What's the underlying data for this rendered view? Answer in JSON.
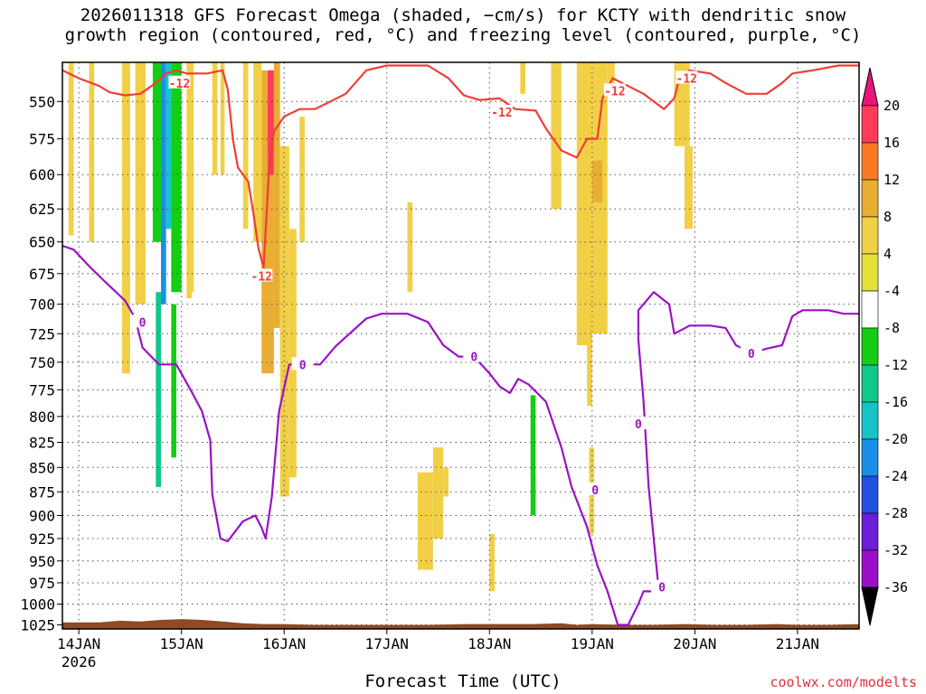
{
  "title_line1": "2026011318 GFS Forecast Omega (shaded, −cm/s) for KCTY with dendritic snow",
  "title_line2": "growth region (contoured, red, °C) and freezing level (contoured, purple, °C)",
  "credit": "coolwx.com/modelts",
  "chart_data": {
    "type": "heatmap",
    "xlabel": "Forecast Time (UTC)",
    "ylabel": "",
    "x_ticks": [
      "14JAN",
      "15JAN",
      "16JAN",
      "17JAN",
      "18JAN",
      "19JAN",
      "20JAN",
      "21JAN"
    ],
    "x_tick_sublabel": "2026",
    "x_range_days": [
      13.84,
      21.6
    ],
    "y_ticks": [
      550,
      575,
      600,
      625,
      650,
      675,
      700,
      725,
      750,
      775,
      800,
      825,
      850,
      875,
      900,
      925,
      950,
      975,
      1000,
      1025
    ],
    "y_range_hpa": [
      525,
      1030
    ],
    "y_log_scale": true,
    "grid": true,
    "colorbar": {
      "ticks": [
        "20",
        "16",
        "12",
        "8",
        "4",
        "-4",
        "-8",
        "-12",
        "-16",
        "-20",
        "-24",
        "-28",
        "-32",
        "-36"
      ],
      "colors": [
        "#ff3b5b",
        "#f97a22",
        "#e9ad34",
        "#f2d046",
        "#e4e23a",
        "#ffffff",
        "#14cd14",
        "#11c88c",
        "#18c3c8",
        "#1a8fe8",
        "#2350e0",
        "#6b1dd9",
        "#9a10c8",
        "#a8a8a8"
      ],
      "top_color": "#e8157a",
      "bottom_color": "#000000"
    },
    "contour_colors": {
      "dgz": "#ef3e36",
      "freezing": "#9b12c6",
      "terrain": "#8d4a24"
    },
    "contour_labels": {
      "dgz": "-12",
      "freezing": "0"
    },
    "freezing_level": [
      [
        13.84,
        653
      ],
      [
        13.95,
        656
      ],
      [
        14.1,
        669
      ],
      [
        14.25,
        681
      ],
      [
        14.45,
        697
      ],
      [
        14.55,
        712
      ],
      [
        14.62,
        737
      ],
      [
        14.78,
        752
      ],
      [
        14.95,
        752
      ],
      [
        15.1,
        777
      ],
      [
        15.2,
        795
      ],
      [
        15.28,
        823
      ],
      [
        15.3,
        878
      ],
      [
        15.38,
        925
      ],
      [
        15.45,
        928
      ],
      [
        15.6,
        906
      ],
      [
        15.72,
        900
      ],
      [
        15.78,
        913
      ],
      [
        15.82,
        925
      ],
      [
        15.88,
        880
      ],
      [
        15.95,
        795
      ],
      [
        16.05,
        752
      ],
      [
        16.2,
        752
      ],
      [
        16.35,
        752
      ],
      [
        16.5,
        736
      ],
      [
        16.8,
        712
      ],
      [
        16.95,
        708
      ],
      [
        17.2,
        708
      ],
      [
        17.4,
        715
      ],
      [
        17.55,
        735
      ],
      [
        17.7,
        745
      ],
      [
        17.85,
        745
      ],
      [
        18.0,
        760
      ],
      [
        18.1,
        772
      ],
      [
        18.2,
        778
      ],
      [
        18.28,
        765
      ],
      [
        18.38,
        770
      ],
      [
        18.55,
        786
      ],
      [
        18.7,
        830
      ],
      [
        18.8,
        870
      ],
      [
        18.95,
        912
      ],
      [
        19.05,
        955
      ],
      [
        19.15,
        985
      ],
      [
        19.25,
        1025
      ],
      [
        19.35,
        1025
      ],
      [
        19.45,
        1000
      ],
      [
        19.5,
        985
      ],
      [
        19.6,
        985
      ],
      [
        19.65,
        985
      ],
      [
        19.55,
        870
      ],
      [
        19.5,
        785
      ],
      [
        19.45,
        730
      ],
      [
        19.45,
        705
      ],
      [
        19.6,
        690
      ],
      [
        19.75,
        700
      ],
      [
        19.8,
        725
      ],
      [
        19.95,
        718
      ],
      [
        20.15,
        718
      ],
      [
        20.3,
        720
      ],
      [
        20.4,
        735
      ],
      [
        20.55,
        742
      ],
      [
        20.7,
        738
      ],
      [
        20.85,
        735
      ],
      [
        20.95,
        710
      ],
      [
        21.05,
        705
      ],
      [
        21.3,
        705
      ],
      [
        21.45,
        708
      ],
      [
        21.6,
        708
      ]
    ],
    "dgz_minus12": [
      [
        13.84,
        530
      ],
      [
        14.0,
        535
      ],
      [
        14.2,
        540
      ],
      [
        14.3,
        544
      ],
      [
        14.45,
        546
      ],
      [
        14.6,
        545
      ],
      [
        14.75,
        538
      ],
      [
        14.85,
        532
      ],
      [
        14.95,
        530
      ],
      [
        15.05,
        532
      ],
      [
        15.25,
        532
      ],
      [
        15.4,
        530
      ],
      [
        15.45,
        542
      ],
      [
        15.5,
        575
      ],
      [
        15.55,
        595
      ],
      [
        15.65,
        605
      ],
      [
        15.7,
        628
      ],
      [
        15.75,
        655
      ],
      [
        15.8,
        670
      ],
      [
        15.85,
        600
      ],
      [
        15.9,
        570
      ],
      [
        16.0,
        560
      ],
      [
        16.15,
        555
      ],
      [
        16.3,
        555
      ],
      [
        16.45,
        550
      ],
      [
        16.6,
        545
      ],
      [
        16.8,
        530
      ],
      [
        17.0,
        527
      ],
      [
        17.4,
        527
      ],
      [
        17.6,
        535
      ],
      [
        17.75,
        546
      ],
      [
        17.9,
        549
      ],
      [
        18.1,
        548
      ],
      [
        18.25,
        555
      ],
      [
        18.45,
        556
      ],
      [
        18.55,
        568
      ],
      [
        18.7,
        583
      ],
      [
        18.85,
        588
      ],
      [
        18.95,
        575
      ],
      [
        19.05,
        575
      ],
      [
        19.1,
        548
      ],
      [
        19.2,
        535
      ],
      [
        19.35,
        540
      ],
      [
        19.5,
        545
      ],
      [
        19.6,
        550
      ],
      [
        19.7,
        555
      ],
      [
        19.8,
        548
      ],
      [
        19.85,
        535
      ],
      [
        19.95,
        530
      ],
      [
        20.15,
        532
      ],
      [
        20.3,
        538
      ],
      [
        20.5,
        545
      ],
      [
        20.7,
        545
      ],
      [
        20.85,
        538
      ],
      [
        20.95,
        532
      ],
      [
        21.15,
        530
      ],
      [
        21.4,
        527
      ],
      [
        21.6,
        527
      ]
    ],
    "terrain_top_hpa": [
      [
        13.84,
        1022
      ],
      [
        14.2,
        1022
      ],
      [
        14.4,
        1020
      ],
      [
        14.6,
        1021
      ],
      [
        14.8,
        1019
      ],
      [
        15.0,
        1018
      ],
      [
        15.2,
        1019
      ],
      [
        15.4,
        1021
      ],
      [
        15.6,
        1023
      ],
      [
        15.8,
        1024
      ],
      [
        16.0,
        1024
      ],
      [
        16.3,
        1025
      ],
      [
        16.6,
        1025
      ],
      [
        17.0,
        1025
      ],
      [
        17.4,
        1025
      ],
      [
        17.8,
        1024
      ],
      [
        18.0,
        1024
      ],
      [
        18.4,
        1024
      ],
      [
        18.7,
        1023
      ],
      [
        18.85,
        1025
      ],
      [
        19.0,
        1024
      ],
      [
        19.3,
        1025
      ],
      [
        19.6,
        1025
      ],
      [
        19.9,
        1024
      ],
      [
        20.2,
        1025
      ],
      [
        20.5,
        1025
      ],
      [
        20.8,
        1024
      ],
      [
        21.0,
        1025
      ],
      [
        21.3,
        1025
      ],
      [
        21.6,
        1024
      ]
    ],
    "omega_shading": [
      {
        "t0": 13.9,
        "t1": 13.95,
        "p_top": 525,
        "p_bot": 645,
        "value": 4
      },
      {
        "t0": 14.1,
        "t1": 14.15,
        "p_top": 525,
        "p_bot": 650,
        "value": 4
      },
      {
        "t0": 14.0,
        "t1": 14.05,
        "p_top": 715,
        "p_bot": 792,
        "value": -6
      },
      {
        "t0": 14.35,
        "t1": 14.4,
        "p_top": 525,
        "p_bot": 620,
        "value": -6
      },
      {
        "t0": 14.42,
        "t1": 14.5,
        "p_top": 525,
        "p_bot": 760,
        "value": 4
      },
      {
        "t0": 14.55,
        "t1": 14.65,
        "p_top": 525,
        "p_bot": 700,
        "value": 4
      },
      {
        "t0": 14.6,
        "t1": 14.68,
        "p_top": 700,
        "p_bot": 770,
        "value": -6
      },
      {
        "t0": 14.68,
        "t1": 14.75,
        "p_top": 525,
        "p_bot": 600,
        "value": -6
      },
      {
        "t0": 14.72,
        "t1": 14.8,
        "p_top": 525,
        "p_bot": 650,
        "value": -10
      },
      {
        "t0": 14.75,
        "t1": 14.8,
        "p_top": 690,
        "p_bot": 870,
        "value": -14
      },
      {
        "t0": 14.8,
        "t1": 14.85,
        "p_top": 525,
        "p_bot": 700,
        "value": -22
      },
      {
        "t0": 14.85,
        "t1": 14.9,
        "p_top": 525,
        "p_bot": 640,
        "value": -18
      },
      {
        "t0": 14.9,
        "t1": 15.0,
        "p_top": 525,
        "p_bot": 690,
        "value": -10
      },
      {
        "t0": 14.9,
        "t1": 14.95,
        "p_top": 700,
        "p_bot": 840,
        "value": -10
      },
      {
        "t0": 14.95,
        "t1": 15.05,
        "p_top": 690,
        "p_bot": 985,
        "value": -6
      },
      {
        "t0": 15.05,
        "t1": 15.12,
        "p_top": 525,
        "p_bot": 695,
        "value": 4
      },
      {
        "t0": 15.1,
        "t1": 15.15,
        "p_top": 690,
        "p_bot": 810,
        "value": -6
      },
      {
        "t0": 15.12,
        "t1": 15.2,
        "p_top": 540,
        "p_bot": 590,
        "value": -6
      },
      {
        "t0": 15.3,
        "t1": 15.35,
        "p_top": 525,
        "p_bot": 600,
        "value": 4
      },
      {
        "t0": 15.38,
        "t1": 15.42,
        "p_top": 525,
        "p_bot": 600,
        "value": 4
      },
      {
        "t0": 15.6,
        "t1": 15.65,
        "p_top": 525,
        "p_bot": 640,
        "value": 4
      },
      {
        "t0": 15.7,
        "t1": 15.78,
        "p_top": 525,
        "p_bot": 650,
        "value": 4
      },
      {
        "t0": 15.78,
        "t1": 15.9,
        "p_top": 530,
        "p_bot": 760,
        "value": 10
      },
      {
        "t0": 15.84,
        "t1": 15.9,
        "p_top": 530,
        "p_bot": 600,
        "value": 18
      },
      {
        "t0": 15.9,
        "t1": 15.96,
        "p_top": 525,
        "p_bot": 720,
        "value": 8
      },
      {
        "t0": 15.96,
        "t1": 16.05,
        "p_top": 580,
        "p_bot": 880,
        "value": 4
      },
      {
        "t0": 16.05,
        "t1": 16.12,
        "p_top": 640,
        "p_bot": 860,
        "value": 4
      },
      {
        "t0": 16.15,
        "t1": 16.2,
        "p_top": 560,
        "p_bot": 650,
        "value": 4
      },
      {
        "t0": 17.2,
        "t1": 17.25,
        "p_top": 620,
        "p_bot": 690,
        "value": 4
      },
      {
        "t0": 17.3,
        "t1": 17.45,
        "p_top": 855,
        "p_bot": 960,
        "value": 4
      },
      {
        "t0": 17.45,
        "t1": 17.55,
        "p_top": 830,
        "p_bot": 925,
        "value": 4
      },
      {
        "t0": 17.55,
        "t1": 17.6,
        "p_top": 850,
        "p_bot": 880,
        "value": 4
      },
      {
        "t0": 17.6,
        "t1": 17.65,
        "p_top": 525,
        "p_bot": 540,
        "value": -6
      },
      {
        "t0": 17.7,
        "t1": 17.78,
        "p_top": 700,
        "p_bot": 775,
        "value": -6
      },
      {
        "t0": 17.88,
        "t1": 17.92,
        "p_top": 730,
        "p_bot": 770,
        "value": -6
      },
      {
        "t0": 18.0,
        "t1": 18.05,
        "p_top": 920,
        "p_bot": 985,
        "value": 4
      },
      {
        "t0": 18.3,
        "t1": 18.35,
        "p_top": 525,
        "p_bot": 545,
        "value": 4
      },
      {
        "t0": 18.35,
        "t1": 18.4,
        "p_top": 750,
        "p_bot": 985,
        "value": -6
      },
      {
        "t0": 18.4,
        "t1": 18.45,
        "p_top": 780,
        "p_bot": 900,
        "value": -10
      },
      {
        "t0": 18.45,
        "t1": 18.55,
        "p_top": 700,
        "p_bot": 860,
        "value": -6
      },
      {
        "t0": 18.55,
        "t1": 18.6,
        "p_top": 880,
        "p_bot": 985,
        "value": -6
      },
      {
        "t0": 18.6,
        "t1": 18.7,
        "p_top": 525,
        "p_bot": 625,
        "value": 4
      },
      {
        "t0": 18.78,
        "t1": 18.85,
        "p_top": 850,
        "p_bot": 985,
        "value": -6
      },
      {
        "t0": 18.85,
        "t1": 19.0,
        "p_top": 525,
        "p_bot": 735,
        "value": 4
      },
      {
        "t0": 18.95,
        "t1": 19.0,
        "p_top": 720,
        "p_bot": 790,
        "value": 4
      },
      {
        "t0": 18.97,
        "t1": 19.02,
        "p_top": 830,
        "p_bot": 920,
        "value": 4
      },
      {
        "t0": 19.0,
        "t1": 19.15,
        "p_top": 525,
        "p_bot": 725,
        "value": 4
      },
      {
        "t0": 19.0,
        "t1": 19.1,
        "p_top": 590,
        "p_bot": 620,
        "value": 8
      },
      {
        "t0": 19.15,
        "t1": 19.22,
        "p_top": 525,
        "p_bot": 545,
        "value": 4
      },
      {
        "t0": 19.8,
        "t1": 19.95,
        "p_top": 525,
        "p_bot": 580,
        "value": 4
      },
      {
        "t0": 19.9,
        "t1": 19.98,
        "p_top": 580,
        "p_bot": 640,
        "value": 4
      },
      {
        "t0": 19.82,
        "t1": 19.9,
        "p_top": 945,
        "p_bot": 985,
        "value": -6
      }
    ]
  }
}
